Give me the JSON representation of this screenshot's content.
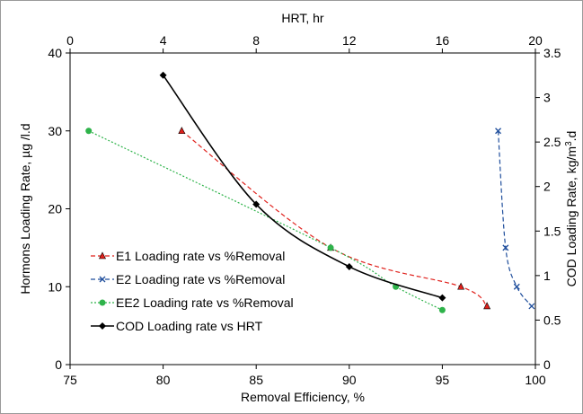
{
  "chart_data": {
    "type": "line",
    "xlabel_bottom": "Removal Efficiency, %",
    "xlabel_top": "HRT, hr",
    "ylabel_left": "Hormons Loading Rate, µg /l.d",
    "ylabel_right_parts": [
      "COD Loading Rate, kg/m",
      "3",
      ".d"
    ],
    "x_bottom": {
      "range": [
        75,
        100
      ],
      "ticks": [
        75,
        80,
        85,
        90,
        95,
        100
      ]
    },
    "x_top": {
      "range": [
        0,
        20
      ],
      "ticks": [
        0,
        4,
        8,
        12,
        16,
        20
      ]
    },
    "y_left": {
      "range": [
        0,
        40
      ],
      "ticks": [
        0,
        10,
        20,
        30,
        40
      ]
    },
    "y_right": {
      "range": [
        0,
        3.5
      ],
      "ticks": [
        0,
        0.5,
        1,
        1.5,
        2,
        2.5,
        3,
        3.5
      ]
    },
    "grid": false,
    "legend_position": "middle-left",
    "series": [
      {
        "name": "E1 Loading rate vs %Removal",
        "x_axis": "bottom",
        "y_axis": "left",
        "color": "#e0201b",
        "dash": "dashed",
        "marker": "triangle",
        "x": [
          81,
          89,
          96,
          97.4
        ],
        "y": [
          30,
          15,
          10,
          7.5
        ]
      },
      {
        "name": "E2 Loading rate vs %Removal",
        "x_axis": "bottom",
        "y_axis": "left",
        "color": "#1f4e9c",
        "dash": "dashed",
        "marker": "x",
        "x": [
          98,
          98.4,
          99,
          99.8
        ],
        "y": [
          30,
          15,
          10,
          7.5
        ]
      },
      {
        "name": "EE2 Loading rate vs %Removal",
        "x_axis": "bottom",
        "y_axis": "left",
        "color": "#2eb34a",
        "dash": "dotted",
        "marker": "circle",
        "x": [
          76,
          89,
          92.5,
          95
        ],
        "y": [
          30,
          15,
          10,
          7
        ]
      },
      {
        "name": "COD Loading rate vs HRT",
        "x_axis": "top",
        "y_axis": "right",
        "color": "#000000",
        "dash": "solid",
        "marker": "diamond",
        "x": [
          4,
          8,
          12,
          16
        ],
        "y": [
          3.25,
          1.8,
          1.1,
          0.75
        ]
      }
    ]
  }
}
